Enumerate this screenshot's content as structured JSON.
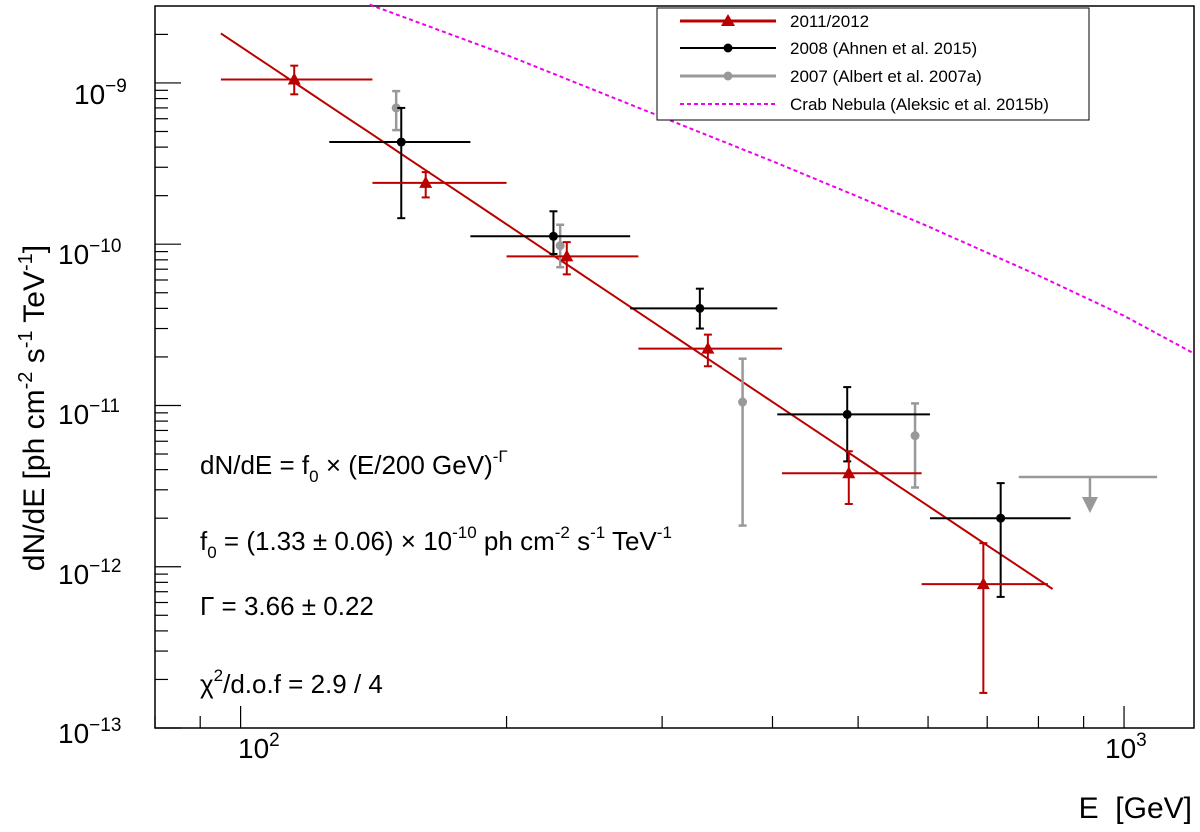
{
  "chart_data": {
    "type": "scatter",
    "xlabel": "E  [GeV]",
    "ylabel": "dN/dE [ph cm^-2 s^-1 TeV^-1]",
    "xscale": "log",
    "yscale": "log",
    "xlim": [
      80,
      1200
    ],
    "ylim": [
      1e-13,
      3e-09
    ],
    "x_tick_labels": [
      {
        "value": 100,
        "base": "10",
        "exp": "2"
      },
      {
        "value": 1000,
        "base": "10",
        "exp": "3"
      }
    ],
    "y_tick_labels": [
      {
        "value": 1e-09,
        "base": "10",
        "exp": "−9"
      },
      {
        "value": 1e-10,
        "base": "10",
        "exp": "−10"
      },
      {
        "value": 1e-11,
        "base": "10",
        "exp": "−11"
      },
      {
        "value": 1e-12,
        "base": "10",
        "exp": "−12"
      },
      {
        "value": 1e-13,
        "base": "10",
        "exp": "−13"
      }
    ],
    "legend_position": "top-right",
    "colors": {
      "red": "#bb0000",
      "black": "#000000",
      "gray": "#999999",
      "magenta": "#ee00ee"
    },
    "series": [
      {
        "name": "2011/2012",
        "color": "#bb0000",
        "marker": "triangle",
        "points": [
          {
            "x": 115,
            "xlo": 95,
            "xhi": 141,
            "y": 1.05e-09,
            "ylo": 8.5e-10,
            "yhi": 1.28e-09
          },
          {
            "x": 162,
            "xlo": 141,
            "xhi": 200,
            "y": 2.4e-10,
            "ylo": 1.95e-10,
            "yhi": 2.8e-10
          },
          {
            "x": 234,
            "xlo": 200,
            "xhi": 282,
            "y": 8.4e-11,
            "ylo": 6.5e-11,
            "yhi": 1.03e-10
          },
          {
            "x": 338,
            "xlo": 282,
            "xhi": 410,
            "y": 2.25e-11,
            "ylo": 1.75e-11,
            "yhi": 2.75e-11
          },
          {
            "x": 488,
            "xlo": 410,
            "xhi": 590,
            "y": 3.8e-12,
            "ylo": 2.45e-12,
            "yhi": 5.2e-12
          },
          {
            "x": 693,
            "xlo": 590,
            "xhi": 820,
            "y": 7.8e-13,
            "ylo": 1.65e-13,
            "yhi": 1.4e-12
          }
        ]
      },
      {
        "name": "2008 (Ahnen et al. 2015)",
        "color": "#000000",
        "marker": "circle",
        "points": [
          {
            "x": 152,
            "xlo": 126,
            "xhi": 182,
            "y": 4.3e-10,
            "ylo": 1.45e-10,
            "yhi": 7e-10
          },
          {
            "x": 226,
            "xlo": 182,
            "xhi": 276,
            "y": 1.12e-10,
            "ylo": 8.7e-11,
            "yhi": 1.6e-10
          },
          {
            "x": 331,
            "xlo": 276,
            "xhi": 405,
            "y": 4e-11,
            "ylo": 3e-11,
            "yhi": 5.3e-11
          },
          {
            "x": 486,
            "xlo": 405,
            "xhi": 603,
            "y": 8.8e-12,
            "ylo": 4.5e-12,
            "yhi": 1.3e-11
          },
          {
            "x": 725,
            "xlo": 603,
            "xhi": 870,
            "y": 2e-12,
            "ylo": 6.5e-13,
            "yhi": 3.3e-12
          }
        ]
      },
      {
        "name": "2007 (Albert et al. 2007a)",
        "color": "#999999",
        "marker": "circle",
        "points": [
          {
            "x": 150,
            "y": 7e-10,
            "ylo": 5.1e-10,
            "yhi": 8.9e-10
          },
          {
            "x": 230,
            "y": 9.8e-11,
            "ylo": 7.2e-11,
            "yhi": 1.32e-10
          },
          {
            "x": 370,
            "y": 1.05e-11,
            "ylo": 1.8e-12,
            "yhi": 1.95e-11
          },
          {
            "x": 580,
            "y": 6.5e-12,
            "ylo": 3.1e-12,
            "yhi": 1.03e-11
          }
        ],
        "upper_limits": [
          {
            "x": 915,
            "xlo": 760,
            "xhi": 1090,
            "y": 3.6e-12
          }
        ]
      },
      {
        "name": "Crab Nebula (Aleksic et al. 2015b)",
        "color": "#ee00ee",
        "style": "dashed",
        "curve": [
          [
            140,
            3.06e-09
          ],
          [
            200,
            1.49e-09
          ],
          [
            300,
            6.13e-10
          ],
          [
            400,
            3.27e-10
          ],
          [
            500,
            1.97e-10
          ],
          [
            600,
            1.29e-10
          ],
          [
            800,
            6.4e-11
          ],
          [
            1000,
            3.6e-11
          ],
          [
            1200,
            2.1e-11
          ]
        ]
      }
    ],
    "fit": {
      "f0": 1.33e-10,
      "gamma": 3.66,
      "e0": 200,
      "xrange": [
        95,
        830
      ],
      "color": "#bb0000"
    },
    "annotations": {
      "formula_prefix": "dN/dE = f",
      "formula_sub": "0",
      "formula_mid": " × (E/200 GeV)",
      "formula_sup": "-Γ",
      "f0_prefix": "f",
      "f0_sub": "0",
      "f0_mid": " = (1.33 ± 0.06) × 10",
      "f0_exp": "-10",
      "f0_unit_a": " ph cm",
      "f0_exp2": "-2",
      "f0_unit_b": " s",
      "f0_exp3": "-1",
      "f0_unit_c": " TeV",
      "f0_exp4": "-1",
      "gamma_text": "Γ = 3.66 ± 0.22",
      "chi_prefix": "χ",
      "chi_sup": "2",
      "chi_rest": "/d.o.f = 2.9 / 4"
    }
  }
}
